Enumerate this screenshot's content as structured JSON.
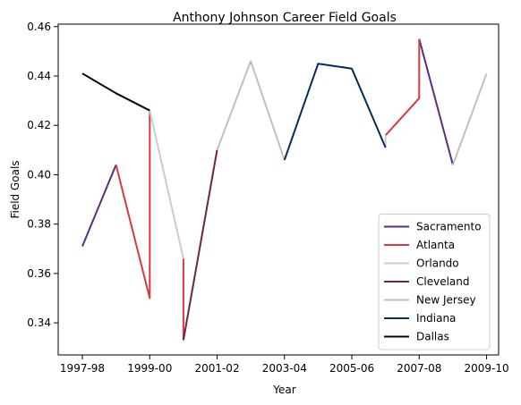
{
  "chart_data": {
    "type": "line",
    "title": "Anthony Johnson  Career Field Goals",
    "xlabel": "Year",
    "ylabel": "Field Goals",
    "x_ticks": [
      "1997-98",
      "1999-00",
      "2001-02",
      "2003-04",
      "2005-06",
      "2007-08",
      "2009-10"
    ],
    "y_ticks": [
      "0.34",
      "0.36",
      "0.38",
      "0.40",
      "0.42",
      "0.44",
      "0.46"
    ],
    "ylim": [
      0.327,
      0.461
    ],
    "grid": false,
    "legend_position": "lower right",
    "series": [
      {
        "name": "Sacramento",
        "color": "#5a2d81",
        "segments": [
          [
            [
              0,
              0.371
            ],
            [
              1,
              0.404
            ]
          ],
          [
            [
              10,
              0.455
            ],
            [
              11,
              0.404
            ]
          ]
        ]
      },
      {
        "name": "Atlanta",
        "color": "#d9393e",
        "segments": [
          [
            [
              1,
              0.404
            ],
            [
              2,
              0.35
            ],
            [
              2,
              0.426
            ]
          ],
          [
            [
              3,
              0.366
            ],
            [
              3,
              0.333
            ]
          ],
          [
            [
              9,
              0.416
            ],
            [
              10,
              0.431
            ],
            [
              10,
              0.455
            ]
          ]
        ]
      },
      {
        "name": "Orlando",
        "color": "#c4ced4",
        "segments": [
          [
            [
              2,
              0.426
            ],
            [
              3,
              0.366
            ]
          ],
          [
            [
              9,
              0.411
            ],
            [
              9,
              0.416
            ]
          ]
        ]
      },
      {
        "name": "Cleveland",
        "color": "#6f263d",
        "segments": [
          [
            [
              3,
              0.333
            ],
            [
              4,
              0.41
            ]
          ]
        ]
      },
      {
        "name": "New Jersey",
        "color": "#bec0c2",
        "segments": [
          [
            [
              4,
              0.41
            ],
            [
              5,
              0.446
            ],
            [
              6,
              0.406
            ]
          ],
          [
            [
              11,
              0.404
            ],
            [
              12,
              0.441
            ]
          ]
        ]
      },
      {
        "name": "Indiana",
        "color": "#002d62",
        "segments": [
          [
            [
              6,
              0.406
            ],
            [
              7,
              0.445
            ],
            [
              8,
              0.443
            ],
            [
              9,
              0.411
            ]
          ]
        ]
      },
      {
        "name": "Dallas",
        "color": "#000000",
        "segments": [
          [
            [
              0,
              0.441
            ],
            [
              1,
              0.433
            ],
            [
              2,
              0.426
            ]
          ]
        ]
      }
    ]
  }
}
